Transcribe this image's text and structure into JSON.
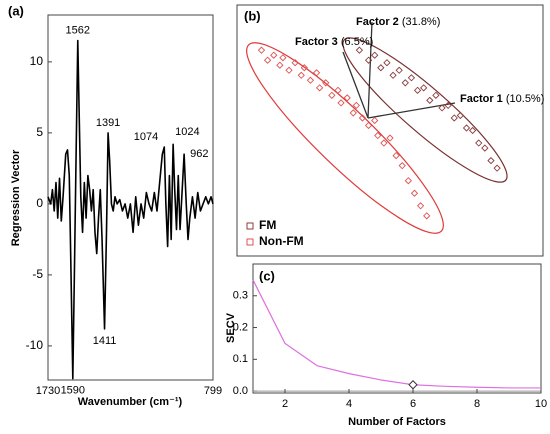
{
  "chart_data": [
    {
      "type": "line",
      "panel": "(a)",
      "xlabel": "Wavenumber (cm⁻¹)",
      "ylabel": "Regression Vector",
      "color": "#000000",
      "xlim": [
        1730,
        799
      ],
      "xticks": [
        1730,
        799
      ],
      "ylim": [
        -12.4,
        13.3
      ],
      "yticks": [
        -10,
        -5,
        0,
        5,
        10
      ],
      "x": [
        1730,
        1715,
        1705,
        1695,
        1685,
        1675,
        1665,
        1655,
        1645,
        1630,
        1620,
        1610,
        1600,
        1590,
        1580,
        1572,
        1562,
        1552,
        1545,
        1535,
        1525,
        1515,
        1505,
        1495,
        1485,
        1475,
        1465,
        1455,
        1445,
        1435,
        1425,
        1411,
        1400,
        1391,
        1382,
        1372,
        1362,
        1352,
        1340,
        1325,
        1310,
        1295,
        1280,
        1265,
        1250,
        1235,
        1220,
        1205,
        1190,
        1175,
        1160,
        1145,
        1130,
        1115,
        1100,
        1085,
        1074,
        1065,
        1055,
        1045,
        1035,
        1024,
        1015,
        1005,
        995,
        985,
        975,
        962,
        950,
        940,
        930,
        915,
        900,
        885,
        870,
        855,
        840,
        825,
        810,
        799
      ],
      "values": [
        0.5,
        0,
        1,
        -0.5,
        1.5,
        -1,
        1.8,
        -1.2,
        0.5,
        3.5,
        3.8,
        2,
        -5,
        -12.3,
        -4,
        3,
        11.5,
        5,
        0.5,
        -2,
        1.5,
        -1,
        2,
        1,
        -0.5,
        1,
        -2,
        -3.5,
        -1,
        1,
        -2.5,
        -8.8,
        -2,
        5,
        3,
        0,
        -0.5,
        0.5,
        0,
        0.3,
        -0.5,
        0,
        -1,
        0,
        -2,
        0.5,
        -1.5,
        0,
        -1,
        0.8,
        0,
        -0.5,
        0.8,
        -0.5,
        1.5,
        3.5,
        4,
        0,
        -3,
        2,
        -2.5,
        4.2,
        1,
        -1.8,
        2,
        -1.8,
        0.5,
        3.5,
        0,
        -2.5,
        -1,
        0.5,
        -1,
        0.8,
        -0.5,
        0,
        0.5,
        0,
        0.5,
        0
      ],
      "annotations": [
        {
          "text": "1562",
          "x": 1562,
          "y": 11.5
        },
        {
          "text": "1391",
          "x": 1391,
          "y": 5
        },
        {
          "text": "1074",
          "x": 1074,
          "y": 4
        },
        {
          "text": "1024",
          "x": 1024,
          "y": 4.2
        },
        {
          "text": "962",
          "x": 962,
          "y": 3.5
        },
        {
          "text": "1590",
          "x": 1590,
          "y": -12.3
        },
        {
          "text": "1411",
          "x": 1411,
          "y": -8.8
        }
      ]
    },
    {
      "type": "scatter",
      "panel": "(b)",
      "xlim": [
        0,
        100
      ],
      "ylim": [
        0,
        100
      ],
      "factors": [
        {
          "name": "Factor 1",
          "detail": "(10.5%)"
        },
        {
          "name": "Factor 2",
          "detail": "(31.8%)"
        },
        {
          "name": "Factor 3",
          "detail": "(6.5%)"
        }
      ],
      "legend": "bottom-left",
      "series": [
        {
          "name": "FM",
          "color": "#8c3c3c",
          "x": [
            40,
            43,
            45,
            47,
            49,
            51,
            53,
            55,
            57,
            59,
            61,
            63,
            65,
            67,
            69,
            71,
            73,
            75,
            77,
            79,
            81,
            83,
            85
          ],
          "values": [
            82,
            78,
            80,
            75,
            77,
            72,
            74,
            69,
            71,
            66,
            67,
            62,
            64,
            59,
            60,
            55,
            56,
            51,
            50,
            45,
            43,
            38,
            35
          ]
        },
        {
          "name": "Non-FM",
          "color": "#e05050",
          "x": [
            8,
            10,
            12,
            14,
            15,
            17,
            19,
            21,
            22,
            24,
            26,
            27,
            29,
            31,
            33,
            34,
            36,
            38,
            39,
            41,
            43,
            45,
            46,
            48,
            50,
            52,
            54,
            56,
            58,
            60,
            62
          ],
          "values": [
            82,
            78,
            80,
            76,
            79,
            74,
            77,
            72,
            75,
            70,
            73,
            67,
            69,
            64,
            66,
            61,
            63,
            57,
            60,
            55,
            52,
            54,
            48,
            45,
            47,
            40,
            36,
            30,
            25,
            20,
            16
          ]
        }
      ]
    },
    {
      "type": "line",
      "panel": "(c)",
      "xlabel": "Number of Factors",
      "ylabel": "SECV",
      "color": "#e070e0",
      "xlim": [
        1,
        10
      ],
      "xticks": [
        2,
        4,
        6,
        8,
        10
      ],
      "ylim": [
        -0.006,
        0.4
      ],
      "yticks": [
        {
          "value": 0,
          "label": "0.0"
        },
        0.1,
        0.2,
        0.3
      ],
      "x": [
        1,
        2,
        3,
        4,
        5,
        6,
        7,
        8,
        9,
        10
      ],
      "values": [
        0.35,
        0.15,
        0.08,
        0.055,
        0.035,
        0.02,
        0.015,
        0.012,
        0.01,
        0.01
      ],
      "highlight": 6
    }
  ]
}
